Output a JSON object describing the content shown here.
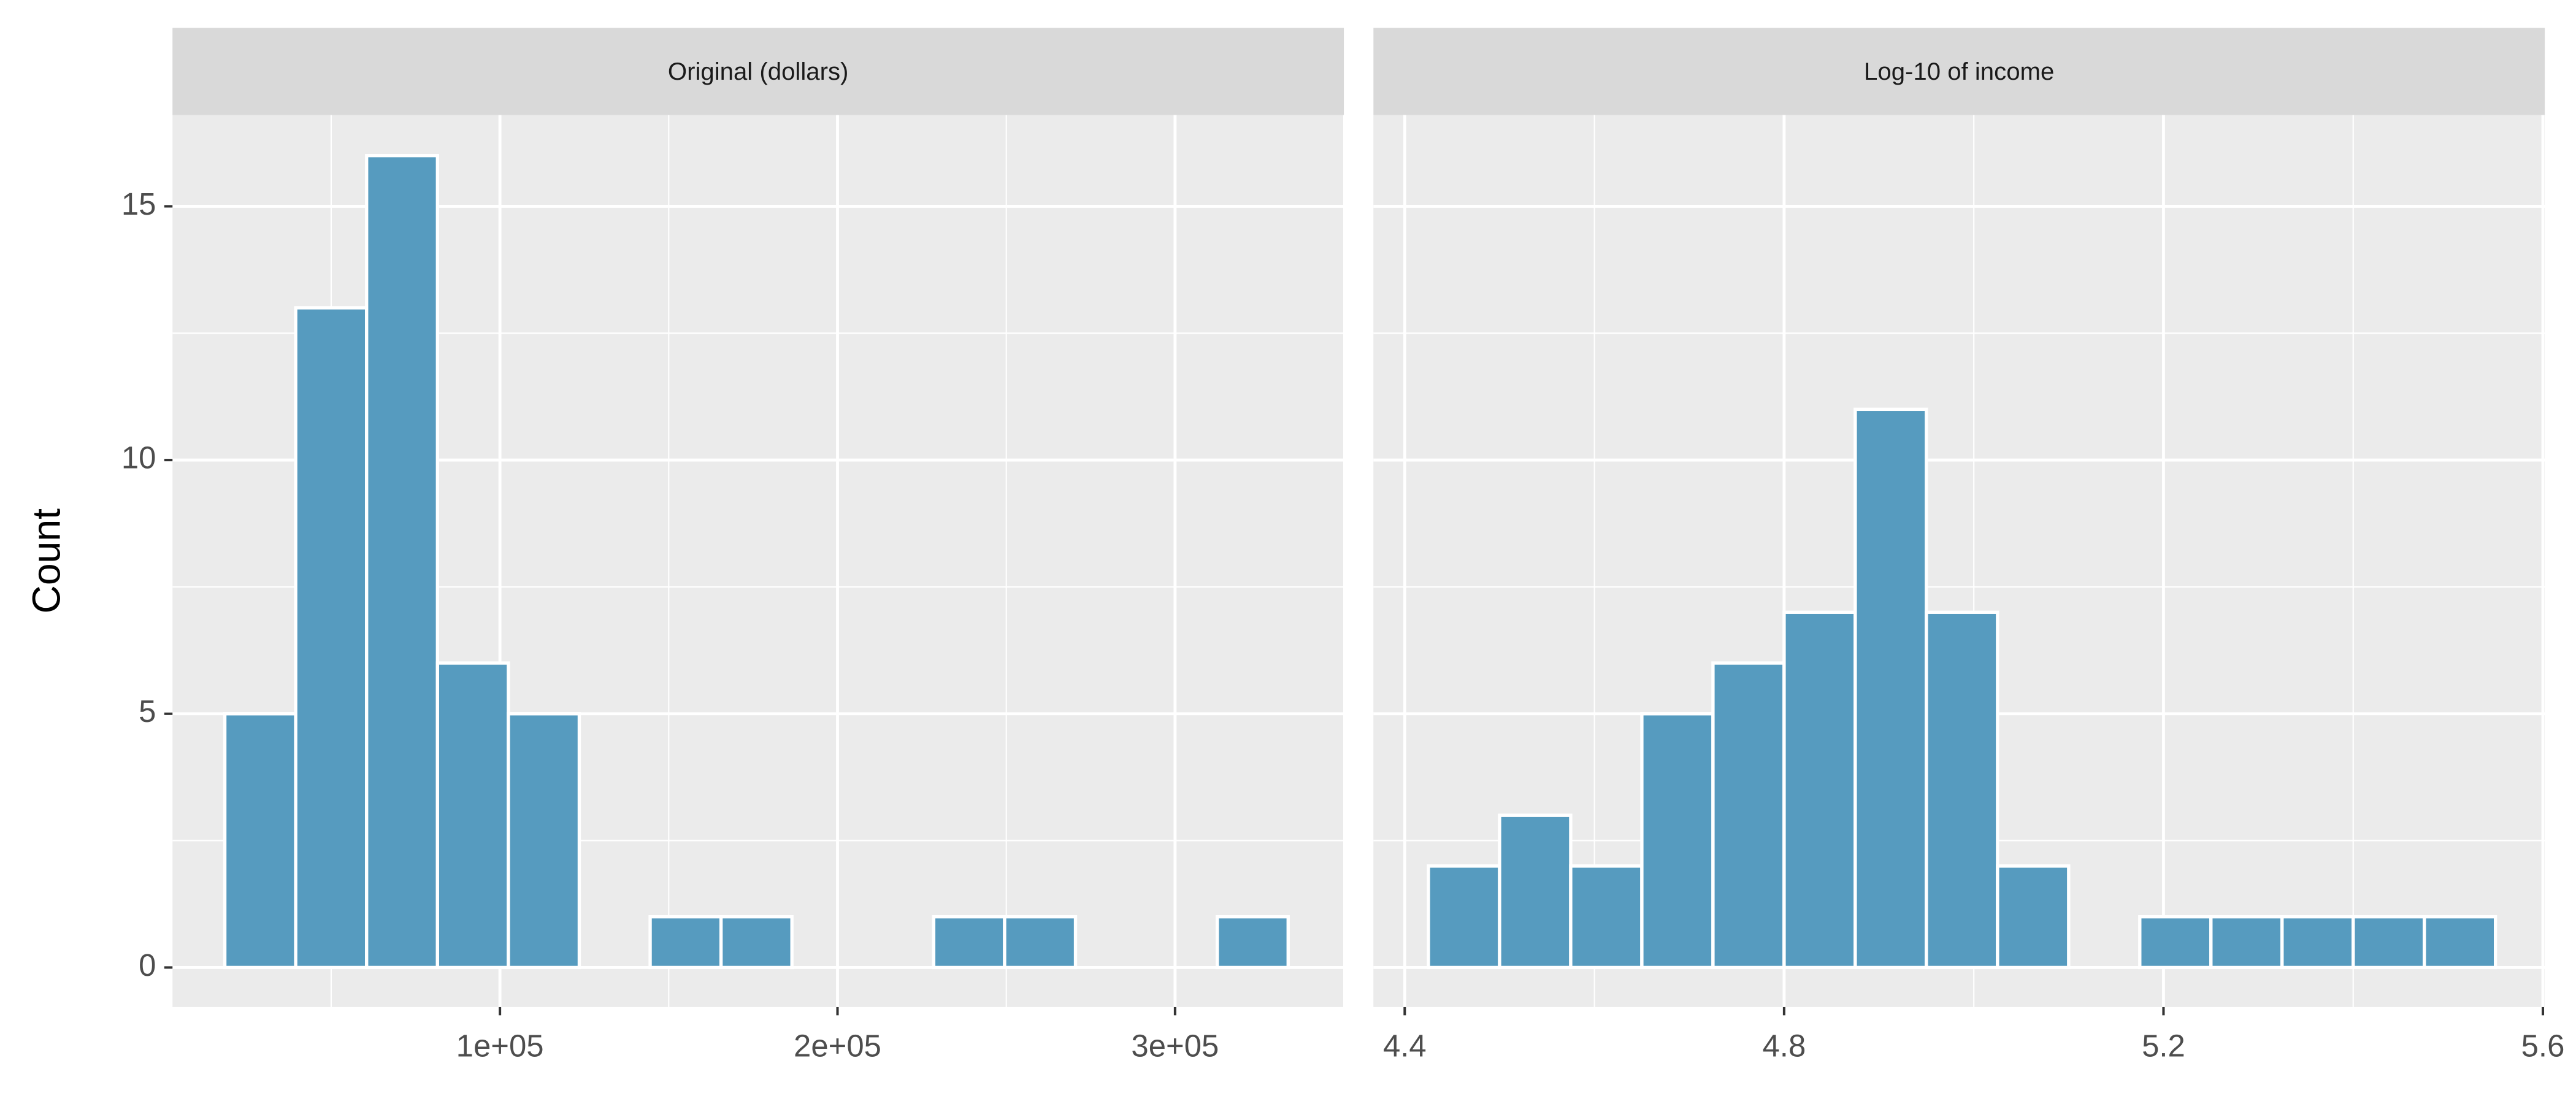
{
  "chart_data": [
    {
      "type": "histogram",
      "title": "Original (dollars)",
      "ylabel": "Count",
      "bins": [
        18500,
        39500,
        60500,
        81500,
        102500,
        123500,
        144500,
        165500,
        186500,
        207500,
        228500,
        249500,
        270500,
        291500,
        312500,
        333500
      ],
      "values": [
        5,
        13,
        16,
        6,
        5,
        0,
        1,
        1,
        0,
        0,
        1,
        1,
        0,
        0,
        1
      ],
      "color": "#569bbf",
      "xlim": [
        3000,
        350000
      ],
      "xticks": [
        {
          "value": 100000,
          "label": "1e+05"
        },
        {
          "value": 200000,
          "label": "2e+05"
        },
        {
          "value": 300000,
          "label": "3e+05"
        }
      ],
      "ylim": [
        -0.78,
        16.8
      ],
      "yticks": [
        0,
        5,
        10,
        15
      ],
      "grid": true
    },
    {
      "type": "histogram",
      "title": "Log-10 of income",
      "bins": [
        4.425,
        4.5,
        4.575,
        4.65,
        4.725,
        4.8,
        4.875,
        4.95,
        5.025,
        5.1,
        5.175,
        5.25,
        5.325,
        5.4,
        5.475,
        5.55
      ],
      "values": [
        2,
        3,
        2,
        5,
        6,
        7,
        11,
        7,
        2,
        0,
        1,
        1,
        1,
        1,
        1
      ],
      "color": "#569bbf",
      "xlim": [
        4.367,
        5.602
      ],
      "xticks": [
        4.4,
        4.8,
        5.2,
        5.6
      ],
      "ylim": [
        -0.78,
        16.8
      ],
      "yticks": [
        0,
        5,
        10,
        15
      ],
      "grid": true
    }
  ]
}
